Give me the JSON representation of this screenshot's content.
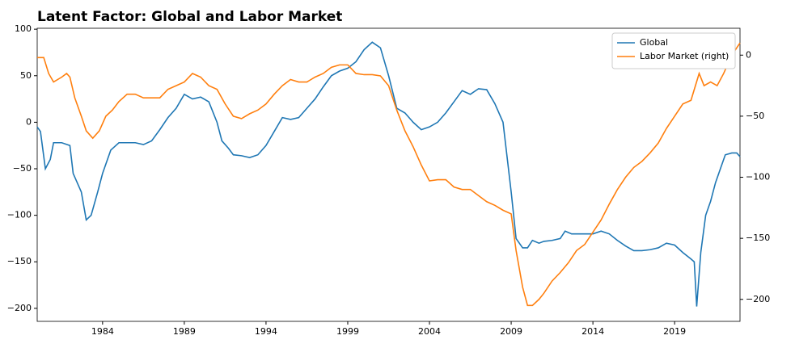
{
  "chart_data": {
    "type": "line",
    "title": "Latent Factor: Global and Labor Market",
    "xlim": [
      1980,
      2023
    ],
    "xticks": [
      1984,
      1989,
      1994,
      1999,
      2004,
      2009,
      2014,
      2019
    ],
    "ylim": [
      -214,
      101
    ],
    "yticks": [
      {
        "value": -200,
        "label": "−200"
      },
      {
        "value": -150,
        "label": "−150"
      },
      {
        "value": -100,
        "label": "−100"
      },
      {
        "value": -50,
        "label": "−50"
      },
      0,
      50,
      100
    ],
    "y2lim": [
      -218,
      22
    ],
    "y2ticks": [
      {
        "value": -200,
        "label": "−200"
      },
      {
        "value": -150,
        "label": "−150"
      },
      {
        "value": -100,
        "label": "−100"
      },
      {
        "value": -50,
        "label": "−50"
      },
      0
    ],
    "legend": "upper right",
    "series": [
      {
        "name": "Global",
        "color": "#1f77b4",
        "x": [
          1980.0,
          1980.2,
          1980.5,
          1980.8,
          1981.0,
          1981.5,
          1982.0,
          1982.2,
          1982.7,
          1983.0,
          1983.3,
          1983.7,
          1984.0,
          1984.5,
          1985.0,
          1985.5,
          1986.0,
          1986.5,
          1987.0,
          1987.5,
          1988.0,
          1988.5,
          1989.0,
          1989.5,
          1990.0,
          1990.5,
          1991.0,
          1991.3,
          1991.7,
          1992.0,
          1992.5,
          1993.0,
          1993.5,
          1994.0,
          1994.5,
          1995.0,
          1995.5,
          1996.0,
          1996.5,
          1997.0,
          1997.5,
          1998.0,
          1998.5,
          1999.0,
          1999.5,
          2000.0,
          2000.5,
          2001.0,
          2001.5,
          2002.0,
          2002.5,
          2003.0,
          2003.5,
          2004.0,
          2004.5,
          2005.0,
          2005.5,
          2006.0,
          2006.5,
          2007.0,
          2007.5,
          2008.0,
          2008.5,
          2009.0,
          2009.3,
          2009.7,
          2010.0,
          2010.3,
          2010.7,
          2011.0,
          2011.5,
          2012.0,
          2012.3,
          2012.7,
          2013.0,
          2013.5,
          2014.0,
          2014.5,
          2015.0,
          2015.5,
          2016.0,
          2016.5,
          2017.0,
          2017.5,
          2018.0,
          2018.5,
          2019.0,
          2019.5,
          2020.0,
          2020.2,
          2020.35,
          2020.6,
          2020.9,
          2021.2,
          2021.5,
          2021.8,
          2022.1,
          2022.5,
          2022.8,
          2023.0
        ],
        "values": [
          -5,
          -10,
          -50,
          -40,
          -22,
          -22,
          -25,
          -55,
          -75,
          -105,
          -100,
          -75,
          -55,
          -30,
          -22,
          -22,
          -22,
          -24,
          -20,
          -8,
          5,
          15,
          30,
          25,
          27,
          22,
          0,
          -20,
          -28,
          -35,
          -36,
          -38,
          -35,
          -25,
          -10,
          5,
          3,
          5,
          15,
          25,
          38,
          50,
          55,
          58,
          65,
          78,
          86,
          80,
          50,
          15,
          10,
          0,
          -8,
          -5,
          0,
          10,
          22,
          34,
          30,
          36,
          35,
          20,
          0,
          -75,
          -125,
          -135,
          -135,
          -127,
          -130,
          -128,
          -127,
          -125,
          -117,
          -120,
          -120,
          -120,
          -120,
          -117,
          -120,
          -127,
          -133,
          -138,
          -138,
          -137,
          -135,
          -130,
          -132,
          -140,
          -147,
          -150,
          -198,
          -140,
          -100,
          -85,
          -65,
          -50,
          -35,
          -33,
          -33,
          -37
        ]
      },
      {
        "name": "Labor Market (right)",
        "color": "#ff7f0e",
        "axis": "y2",
        "x": [
          1980.0,
          1980.4,
          1980.7,
          1981.0,
          1981.5,
          1981.8,
          1982.0,
          1982.3,
          1982.7,
          1983.0,
          1983.4,
          1983.8,
          1984.2,
          1984.6,
          1985.0,
          1985.5,
          1986.0,
          1986.5,
          1987.0,
          1987.5,
          1988.0,
          1988.5,
          1989.0,
          1989.5,
          1990.0,
          1990.5,
          1991.0,
          1991.5,
          1992.0,
          1992.5,
          1993.0,
          1993.5,
          1994.0,
          1994.5,
          1995.0,
          1995.5,
          1996.0,
          1996.5,
          1997.0,
          1997.5,
          1998.0,
          1998.5,
          1999.0,
          1999.5,
          2000.0,
          2000.5,
          2001.0,
          2001.5,
          2002.0,
          2002.5,
          2003.0,
          2003.5,
          2004.0,
          2004.5,
          2005.0,
          2005.5,
          2006.0,
          2006.5,
          2007.0,
          2007.5,
          2008.0,
          2008.5,
          2009.0,
          2009.3,
          2009.7,
          2010.0,
          2010.3,
          2010.7,
          2011.0,
          2011.5,
          2012.0,
          2012.5,
          2013.0,
          2013.5,
          2014.0,
          2014.5,
          2015.0,
          2015.5,
          2016.0,
          2016.5,
          2017.0,
          2017.5,
          2018.0,
          2018.5,
          2019.0,
          2019.5,
          2020.0,
          2020.5,
          2020.8,
          2021.2,
          2021.6,
          2022.0,
          2022.5,
          2023.0
        ],
        "values": [
          -2,
          -2,
          -15,
          -22,
          -18,
          -15,
          -18,
          -35,
          -50,
          -62,
          -68,
          -62,
          -50,
          -45,
          -38,
          -32,
          -32,
          -35,
          -35,
          -35,
          -28,
          -25,
          -22,
          -15,
          -18,
          -25,
          -28,
          -40,
          -50,
          -52,
          -48,
          -45,
          -40,
          -32,
          -25,
          -20,
          -22,
          -22,
          -18,
          -15,
          -10,
          -8,
          -8,
          -15,
          -16,
          -16,
          -17,
          -25,
          -45,
          -62,
          -75,
          -90,
          -103,
          -102,
          -102,
          -108,
          -110,
          -110,
          -115,
          -120,
          -123,
          -127,
          -130,
          -160,
          -190,
          -205,
          -205,
          -200,
          -195,
          -185,
          -178,
          -170,
          -160,
          -155,
          -145,
          -135,
          -122,
          -110,
          -100,
          -92,
          -87,
          -80,
          -72,
          -60,
          -50,
          -40,
          -37,
          -15,
          -25,
          -22,
          -25,
          -15,
          0,
          10
        ]
      }
    ]
  }
}
